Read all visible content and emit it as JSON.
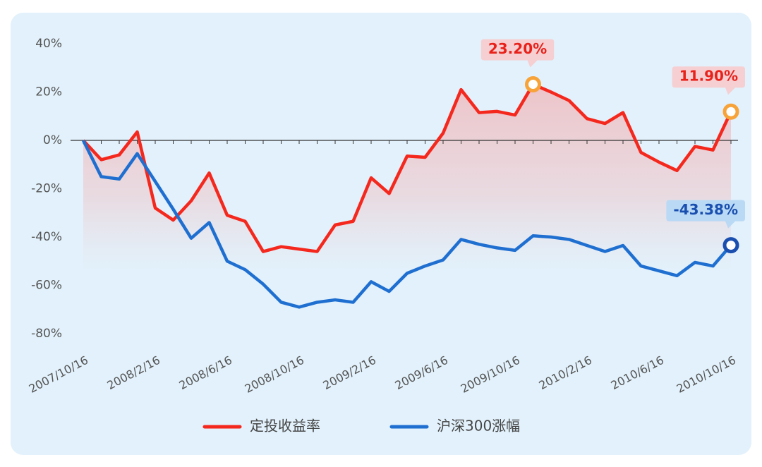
{
  "chart_data": {
    "type": "line",
    "categories": [
      "2007/10/16",
      null,
      null,
      null,
      "2008/2/16",
      null,
      null,
      null,
      "2008/6/16",
      null,
      null,
      null,
      "2008/10/16",
      null,
      null,
      null,
      "2009/2/16",
      null,
      null,
      null,
      "2009/6/16",
      null,
      null,
      null,
      "2009/10/16",
      null,
      null,
      null,
      "2010/2/16",
      null,
      null,
      null,
      "2010/6/16",
      null,
      null,
      null,
      "2010/10/16"
    ],
    "series": [
      {
        "name": "定投收益率",
        "color": "#f5281e",
        "values": [
          0,
          -8,
          -6,
          3.5,
          -28,
          -33,
          -25,
          -13.5,
          -31,
          -33.5,
          -46,
          -44,
          -45,
          -46,
          -35,
          -33.5,
          -15.5,
          -22,
          -6.5,
          -7,
          3,
          21,
          11.5,
          12,
          10.5,
          23.2,
          20,
          16.5,
          9,
          7,
          11.5,
          -5,
          -9,
          -12.5,
          -2.5,
          -4,
          11.9
        ],
        "value_labels": [
          null,
          null,
          null,
          null,
          null,
          null,
          null,
          null,
          null,
          null,
          null,
          null,
          null,
          null,
          null,
          null,
          null,
          null,
          null,
          null,
          null,
          null,
          null,
          null,
          null,
          "23.20%",
          null,
          null,
          null,
          null,
          null,
          null,
          null,
          null,
          null,
          null,
          "11.90%"
        ]
      },
      {
        "name": "沪深300涨幅",
        "color": "#1f6fd1",
        "values": [
          0,
          -15,
          -16,
          -5.5,
          -17,
          -28.5,
          -40.5,
          -34,
          -50,
          -53.5,
          -59.5,
          -67,
          -69,
          -67,
          -66,
          -67,
          -58.5,
          -62.5,
          -55,
          -52,
          -49.5,
          -41,
          -43,
          -44.5,
          -45.5,
          -39.5,
          -40,
          -41,
          -43.5,
          -46,
          -43.5,
          -52,
          -54,
          -56,
          -50.5,
          -52,
          -43.38
        ],
        "value_labels": [
          null,
          null,
          null,
          null,
          null,
          null,
          null,
          null,
          null,
          null,
          null,
          null,
          null,
          null,
          null,
          null,
          null,
          null,
          null,
          null,
          null,
          null,
          null,
          null,
          null,
          null,
          null,
          null,
          null,
          null,
          null,
          null,
          null,
          null,
          null,
          null,
          "-43.38%"
        ]
      }
    ],
    "ylim": [
      -80,
      40
    ],
    "yticks": [
      {
        "value": 40,
        "label": "40%"
      },
      {
        "value": 20,
        "label": "20%"
      },
      {
        "value": 0,
        "label": "0%"
      },
      {
        "value": -20,
        "label": "-20%"
      },
      {
        "value": -40,
        "label": "-40%"
      },
      {
        "value": -60,
        "label": "-60%"
      },
      {
        "value": -80,
        "label": "-80%"
      }
    ],
    "legend": "bottom"
  }
}
